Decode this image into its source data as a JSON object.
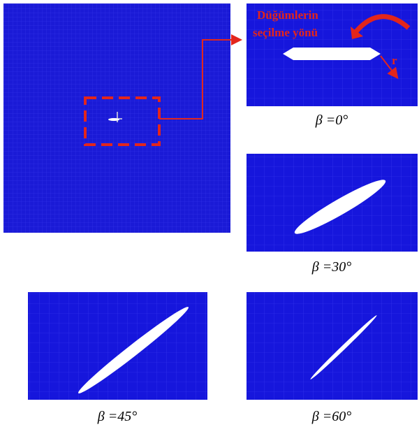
{
  "callout": {
    "line1": "Düğümlerin",
    "line2": "seçilme yönü",
    "axis": "r"
  },
  "panels": [
    {
      "caption": "β =0°"
    },
    {
      "caption": "β =30°"
    },
    {
      "caption": "β =45°"
    },
    {
      "caption": "β =60°"
    }
  ]
}
